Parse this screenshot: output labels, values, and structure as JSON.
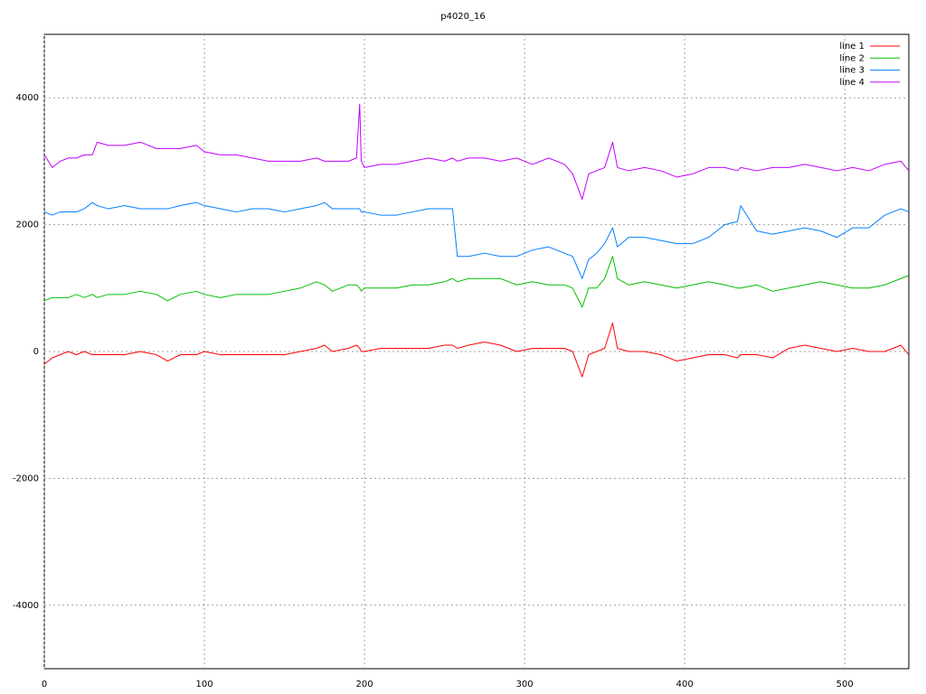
{
  "chart_data": {
    "type": "line",
    "title": "p4020_16",
    "x": [
      0,
      5,
      10,
      15,
      20,
      25,
      30,
      33,
      40,
      50,
      60,
      70,
      77,
      85,
      95,
      100,
      110,
      120,
      130,
      140,
      150,
      160,
      170,
      175,
      180,
      190,
      195,
      197,
      198,
      200,
      210,
      220,
      230,
      240,
      250,
      255,
      258,
      265,
      275,
      285,
      295,
      305,
      315,
      325,
      330,
      336,
      340,
      345,
      350,
      355,
      358,
      365,
      375,
      385,
      395,
      405,
      415,
      425,
      433,
      435,
      445,
      455,
      465,
      475,
      485,
      495,
      505,
      515,
      525,
      535,
      540
    ],
    "series": [
      {
        "name": "line 1",
        "color": "#ff0000",
        "values": [
          -200,
          -100,
          -50,
          0,
          -50,
          0,
          -50,
          -50,
          -50,
          -50,
          0,
          -50,
          -150,
          -50,
          -50,
          0,
          -50,
          -50,
          -50,
          -50,
          -50,
          0,
          50,
          100,
          0,
          50,
          100,
          50,
          0,
          0,
          50,
          50,
          50,
          50,
          100,
          100,
          50,
          100,
          150,
          100,
          0,
          50,
          50,
          50,
          0,
          -400,
          -50,
          0,
          50,
          450,
          50,
          0,
          0,
          -50,
          -150,
          -100,
          -50,
          -50,
          -100,
          -50,
          -50,
          -100,
          50,
          100,
          50,
          0,
          50,
          0,
          0,
          100,
          -50
        ]
      },
      {
        "name": "line 2",
        "color": "#00c000",
        "values": [
          800,
          850,
          850,
          850,
          900,
          850,
          900,
          850,
          900,
          900,
          950,
          900,
          800,
          900,
          950,
          900,
          850,
          900,
          900,
          900,
          950,
          1000,
          1100,
          1050,
          950,
          1050,
          1050,
          1000,
          950,
          1000,
          1000,
          1000,
          1050,
          1050,
          1100,
          1150,
          1100,
          1150,
          1150,
          1150,
          1050,
          1100,
          1050,
          1050,
          1000,
          700,
          1000,
          1000,
          1150,
          1500,
          1150,
          1050,
          1100,
          1050,
          1000,
          1050,
          1100,
          1050,
          1000,
          1000,
          1050,
          950,
          1000,
          1050,
          1100,
          1050,
          1000,
          1000,
          1050,
          1150,
          1200
        ]
      },
      {
        "name": "line 3",
        "color": "#0080ff",
        "values": [
          2200,
          2150,
          2200,
          2200,
          2200,
          2250,
          2350,
          2300,
          2250,
          2300,
          2250,
          2250,
          2250,
          2300,
          2350,
          2300,
          2250,
          2200,
          2250,
          2250,
          2200,
          2250,
          2300,
          2350,
          2250,
          2250,
          2250,
          2250,
          2200,
          2200,
          2150,
          2150,
          2200,
          2250,
          2250,
          2250,
          1500,
          1500,
          1550,
          1500,
          1500,
          1600,
          1650,
          1550,
          1500,
          1150,
          1450,
          1550,
          1700,
          1950,
          1650,
          1800,
          1800,
          1750,
          1700,
          1700,
          1800,
          2000,
          2050,
          2300,
          1900,
          1850,
          1900,
          1950,
          1900,
          1800,
          1950,
          1950,
          2150,
          2250,
          2200
        ]
      },
      {
        "name": "line 4",
        "color": "#c000ff",
        "values": [
          3100,
          2900,
          3000,
          3050,
          3050,
          3100,
          3100,
          3300,
          3250,
          3250,
          3300,
          3200,
          3200,
          3200,
          3250,
          3150,
          3100,
          3100,
          3050,
          3000,
          3000,
          3000,
          3050,
          3000,
          3000,
          3000,
          3050,
          3900,
          3000,
          2900,
          2950,
          2950,
          3000,
          3050,
          3000,
          3050,
          3000,
          3050,
          3050,
          3000,
          3050,
          2950,
          3050,
          2950,
          2800,
          2400,
          2800,
          2850,
          2900,
          3300,
          2900,
          2850,
          2900,
          2850,
          2750,
          2800,
          2900,
          2900,
          2850,
          2900,
          2850,
          2900,
          2900,
          2950,
          2900,
          2850,
          2900,
          2850,
          2950,
          3000,
          2850
        ]
      }
    ],
    "xlim": [
      0,
      540
    ],
    "ylim": [
      -5000,
      5000
    ],
    "xticks": [
      0,
      100,
      200,
      300,
      400,
      500
    ],
    "yticks": [
      -4000,
      -2000,
      0,
      2000,
      4000
    ],
    "grid": true,
    "legend": "top-right"
  }
}
